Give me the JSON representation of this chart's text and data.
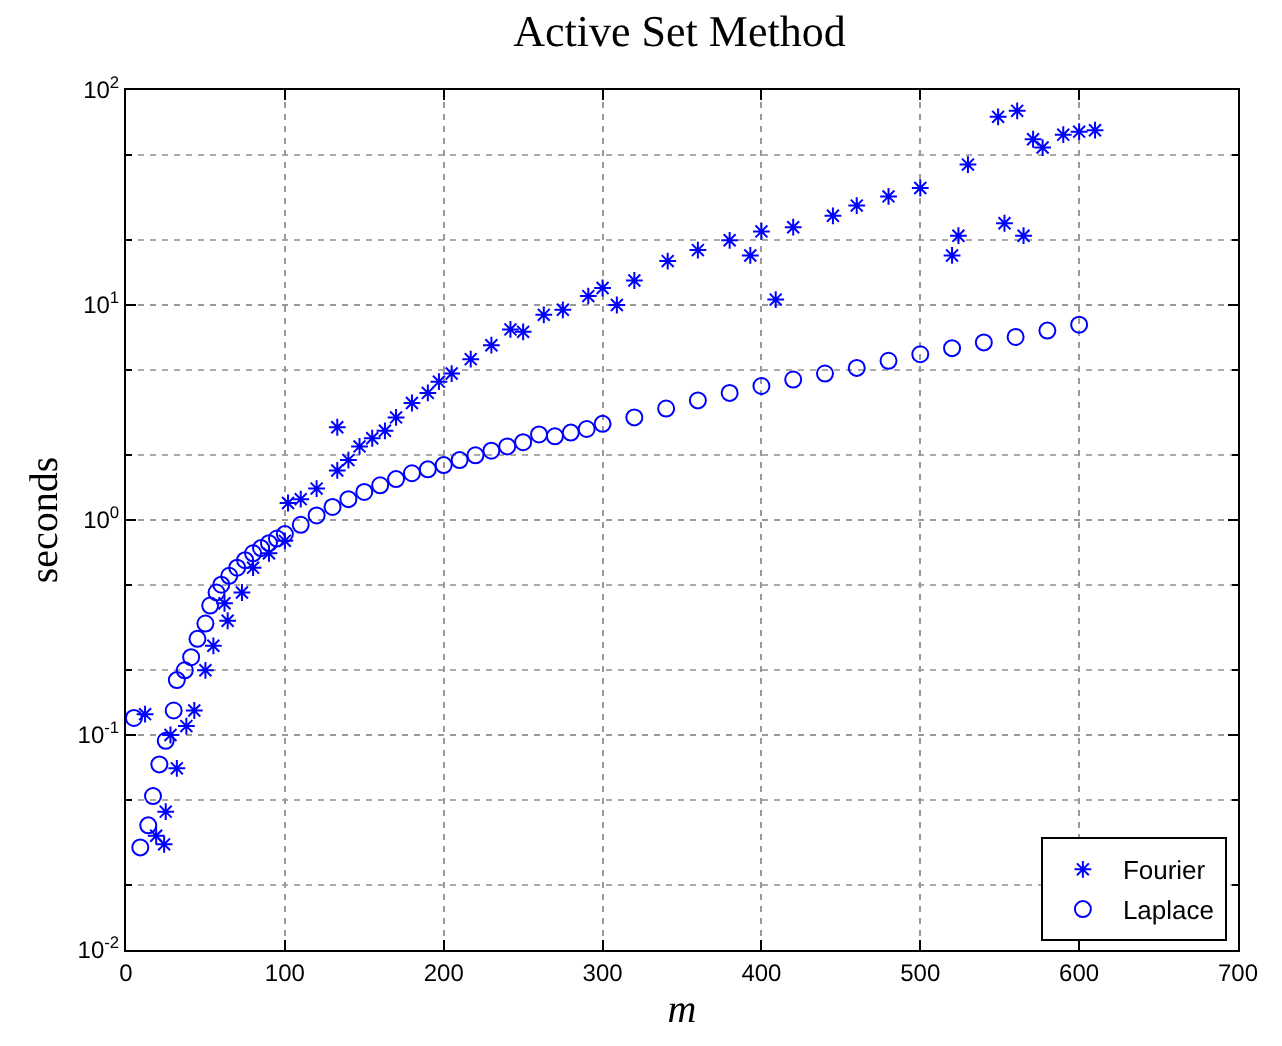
{
  "chart_data": {
    "type": "scatter",
    "title": "Active Set Method",
    "xlabel": "m",
    "ylabel": "seconds",
    "log": "y",
    "grid": true,
    "legend": "bottom right",
    "xlim": [
      0,
      700
    ],
    "xticks": [
      0,
      100,
      200,
      300,
      400,
      500,
      600,
      700
    ],
    "ylim": [
      0.01,
      100
    ],
    "yticks": [
      {
        "value": 0.01,
        "label": "10$^{-2}$"
      },
      {
        "value": 0.1,
        "label": "10$^{-1}$"
      },
      {
        "value": 1,
        "label": "10$^{0}$"
      },
      {
        "value": 10,
        "label": "10$^{1}$"
      },
      {
        "value": 100,
        "label": "10$^{2}$"
      }
    ],
    "series": [
      {
        "name": "Fourier",
        "color": "#0000ff",
        "marker": "cross",
        "x": [
          12,
          19,
          24,
          25,
          28,
          32,
          38,
          43,
          50,
          55,
          62,
          64,
          73,
          80,
          90,
          100,
          102,
          110,
          120,
          133,
          133,
          140,
          147,
          155,
          163,
          170,
          180,
          190,
          197,
          205,
          217,
          230,
          242,
          250,
          263,
          275,
          291,
          300,
          309,
          320,
          341,
          360,
          380,
          393,
          400,
          409,
          420,
          445,
          460,
          480,
          500,
          520,
          524,
          530,
          549,
          553,
          561,
          565,
          571,
          577,
          590,
          600,
          610
        ],
        "values": [
          0.125,
          0.034,
          0.031,
          0.044,
          0.1,
          0.07,
          0.11,
          0.13,
          0.2,
          0.26,
          0.41,
          0.34,
          0.46,
          0.6,
          0.7,
          0.8,
          1.2,
          1.25,
          1.4,
          1.7,
          2.7,
          1.9,
          2.2,
          2.4,
          2.6,
          3.0,
          3.5,
          3.9,
          4.4,
          4.8,
          5.6,
          6.5,
          7.7,
          7.5,
          9.0,
          9.5,
          11,
          12,
          10,
          13,
          16,
          18,
          20,
          17,
          22,
          10.6,
          23,
          26,
          29,
          32,
          35,
          17,
          21,
          45,
          75,
          24,
          80,
          21,
          59,
          54,
          62,
          64,
          65
        ]
      },
      {
        "name": "Laplace",
        "color": "#0000ff",
        "marker": "circle",
        "x": [
          5,
          9,
          14,
          17,
          21,
          25,
          30,
          32,
          37,
          41,
          45,
          50,
          53,
          57,
          60,
          65,
          70,
          75,
          80,
          85,
          90,
          95,
          100,
          110,
          120,
          130,
          140,
          150,
          160,
          170,
          180,
          190,
          200,
          210,
          220,
          230,
          240,
          250,
          260,
          270,
          280,
          290,
          300,
          320,
          340,
          360,
          380,
          400,
          420,
          440,
          460,
          480,
          500,
          520,
          540,
          560,
          580,
          600
        ],
        "values": [
          0.12,
          0.03,
          0.038,
          0.052,
          0.073,
          0.094,
          0.13,
          0.18,
          0.2,
          0.23,
          0.28,
          0.33,
          0.4,
          0.46,
          0.5,
          0.55,
          0.6,
          0.65,
          0.7,
          0.74,
          0.78,
          0.82,
          0.86,
          0.95,
          1.05,
          1.15,
          1.25,
          1.35,
          1.45,
          1.55,
          1.65,
          1.72,
          1.8,
          1.9,
          2.0,
          2.1,
          2.2,
          2.3,
          2.5,
          2.45,
          2.55,
          2.65,
          2.8,
          3.0,
          3.3,
          3.6,
          3.9,
          4.2,
          4.5,
          4.8,
          5.1,
          5.5,
          5.9,
          6.3,
          6.7,
          7.1,
          7.6,
          8.1
        ]
      }
    ]
  }
}
